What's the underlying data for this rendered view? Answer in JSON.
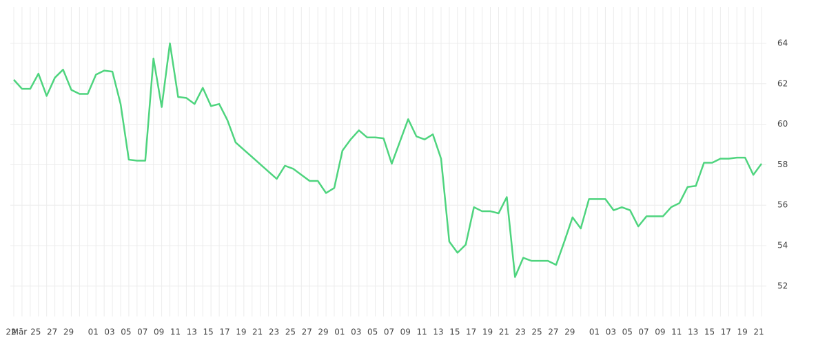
{
  "chart_data": {
    "type": "line",
    "categories": [
      "22",
      "Mär",
      null,
      "25",
      null,
      "27",
      null,
      "29",
      null,
      null,
      "01",
      null,
      "03",
      null,
      "05",
      null,
      "07",
      null,
      "09",
      null,
      "11",
      null,
      "13",
      null,
      "15",
      null,
      "17",
      null,
      "19",
      null,
      "21",
      null,
      "23",
      null,
      "25",
      null,
      "27",
      null,
      "29",
      null,
      "01",
      null,
      "03",
      null,
      "05",
      null,
      "07",
      null,
      "09",
      null,
      "11",
      null,
      "13",
      null,
      "15",
      null,
      "17",
      null,
      "19",
      null,
      "21",
      null,
      "23",
      null,
      "25",
      null,
      "27",
      null,
      "29",
      null,
      null,
      "01",
      null,
      "03",
      null,
      "05",
      null,
      "07",
      null,
      "09",
      null,
      "11",
      null,
      "13",
      null,
      "15",
      null,
      "17",
      null,
      "19",
      null,
      "21"
    ],
    "values": [
      62.2,
      61.75,
      61.75,
      62.5,
      61.4,
      62.3,
      62.7,
      61.7,
      61.5,
      61.5,
      62.45,
      62.65,
      62.6,
      61.0,
      58.25,
      58.2,
      58.2,
      63.25,
      60.85,
      64.0,
      61.35,
      61.3,
      61.0,
      61.8,
      60.9,
      61.0,
      60.2,
      59.1,
      58.74,
      58.38,
      58.02,
      57.66,
      57.3,
      57.95,
      57.8,
      57.5,
      57.2,
      57.2,
      56.6,
      56.85,
      58.7,
      59.25,
      59.7,
      59.35,
      59.35,
      59.3,
      58.05,
      59.15,
      60.25,
      59.4,
      59.25,
      59.5,
      58.3,
      54.2,
      53.65,
      54.05,
      55.9,
      55.7,
      55.7,
      55.6,
      56.4,
      52.45,
      53.4,
      53.25,
      53.25,
      53.25,
      53.05,
      54.2,
      55.4,
      54.85,
      56.3,
      56.3,
      56.3,
      55.75,
      55.9,
      55.75,
      54.95,
      55.45,
      55.45,
      55.45,
      55.9,
      56.1,
      56.9,
      56.95,
      58.1,
      58.1,
      58.3,
      58.3,
      58.35,
      58.35,
      57.5,
      58.05
    ],
    "color": "#4ed47e",
    "ylim": [
      50.5,
      65.8
    ],
    "yticks": [
      52,
      54,
      56,
      58,
      60,
      62,
      64
    ],
    "grid": true
  }
}
